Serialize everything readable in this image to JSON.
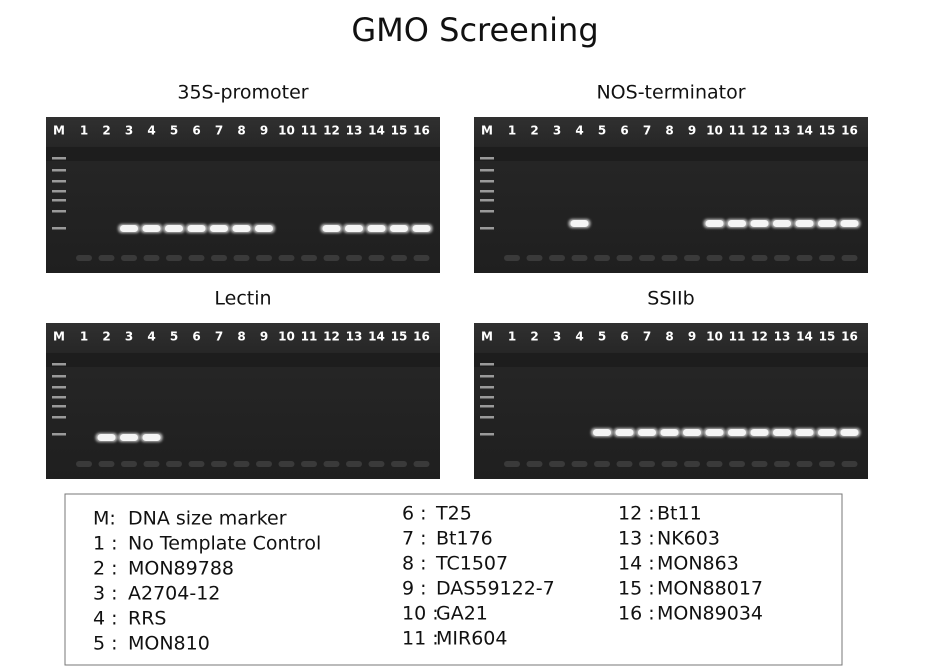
{
  "title": "GMO Screening",
  "panels": [
    {
      "title": "35S-promoter",
      "lanes": [
        "M",
        "1",
        "2",
        "3",
        "4",
        "5",
        "6",
        "7",
        "8",
        "9",
        "10",
        "11",
        "12",
        "13",
        "14",
        "15",
        "16"
      ]
    },
    {
      "title": "NOS-terminator",
      "lanes": [
        "M",
        "1",
        "2",
        "3",
        "4",
        "5",
        "6",
        "7",
        "8",
        "9",
        "10",
        "11",
        "12",
        "13",
        "14",
        "15",
        "16"
      ]
    },
    {
      "title": "Lectin",
      "lanes": [
        "M",
        "1",
        "2",
        "3",
        "4",
        "5",
        "6",
        "7",
        "8",
        "9",
        "10",
        "11",
        "12",
        "13",
        "14",
        "15",
        "16"
      ]
    },
    {
      "title": "SSIIb",
      "lanes": [
        "M",
        "1",
        "2",
        "3",
        "4",
        "5",
        "6",
        "7",
        "8",
        "9",
        "10",
        "11",
        "12",
        "13",
        "14",
        "15",
        "16"
      ]
    }
  ],
  "legend": {
    "columns": [
      [
        {
          "key": "M:",
          "name": "DNA size marker"
        },
        {
          "key": "1 :",
          "name": "No Template Control"
        },
        {
          "key": "2 :",
          "name": "MON89788"
        },
        {
          "key": "3 :",
          "name": "A2704-12"
        },
        {
          "key": "4 :",
          "name": "RRS"
        },
        {
          "key": "5 :",
          "name": "MON810"
        }
      ],
      [
        {
          "key": "6 :",
          "name": "T25"
        },
        {
          "key": "7 :",
          "name": "Bt176"
        },
        {
          "key": "8 :",
          "name": "TC1507"
        },
        {
          "key": "9 :",
          "name": "DAS59122-7"
        },
        {
          "key": "10 :",
          "name": "GA21"
        },
        {
          "key": "11 :",
          "name": "MIR604"
        }
      ],
      [
        {
          "key": "12 :",
          "name": "Bt11"
        },
        {
          "key": "13 :",
          "name": "NK603"
        },
        {
          "key": "14 :",
          "name": "MON863"
        },
        {
          "key": "15 :",
          "name": "MON88017"
        },
        {
          "key": "16 :",
          "name": "MON89034"
        }
      ]
    ]
  }
}
